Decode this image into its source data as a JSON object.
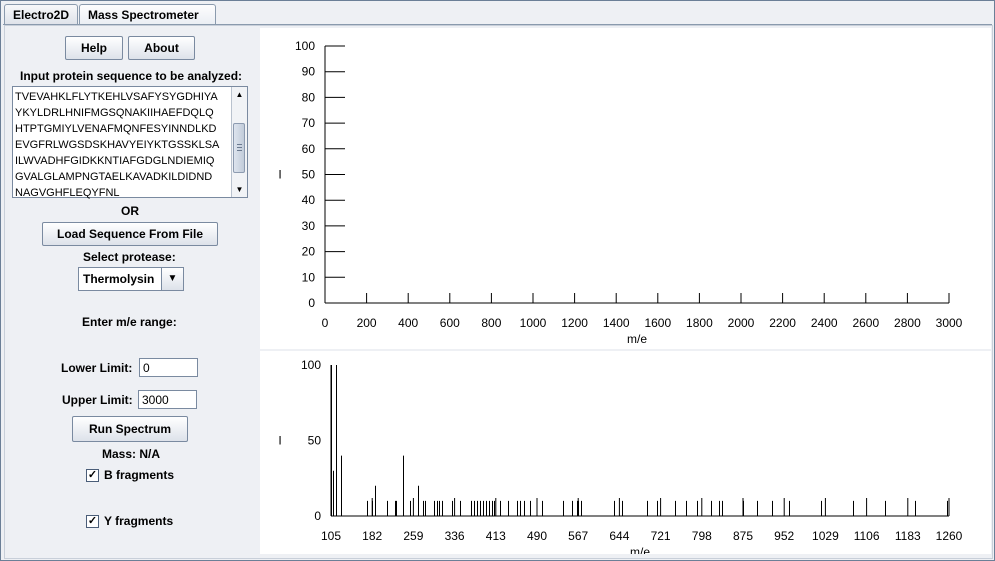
{
  "tabs": [
    {
      "label": "Electro2D",
      "active": false
    },
    {
      "label": "Mass Spectrometer",
      "active": true
    }
  ],
  "buttons": {
    "help": "Help",
    "about": "About",
    "load_sequence": "Load Sequence From File",
    "run_spectrum": "Run Spectrum"
  },
  "labels": {
    "input_prompt": "Input protein sequence to be analyzed:",
    "or": "OR",
    "select_protease": "Select protease:",
    "enter_range": "Enter m/e range:",
    "lower_limit": "Lower Limit:",
    "upper_limit": "Upper Limit:",
    "mass": "Mass: N/A"
  },
  "sequence_lines": [
    "TVEVAHKLFLYTKEHLVSAFYSYGDHIYA",
    "YKYLDRLHNIFMGSQNAKIIHAEFDQLQ",
    "HTPTGMIYLVENAFMQNFESYINNDLKD",
    "EVGFRLWGSDSKHAVYEIYKTGSSKLSA",
    "ILWVADHFGIDKKNTIAFGDGLNDIEMIQ",
    "GVALGLAMPNGTAELKAVADKILDIDND",
    "NAGVGHFLEQYFNL"
  ],
  "protease": {
    "selected": "Thermolysin"
  },
  "inputs": {
    "lower_limit": "0",
    "upper_limit": "3000"
  },
  "checkboxes": {
    "b_fragments": {
      "label": "B fragments",
      "checked": true
    },
    "y_fragments": {
      "label": "Y fragments",
      "checked": true
    }
  },
  "colors": {
    "window_bg": "#eef0f4",
    "plot_bg": "#ffffff",
    "bars": "#000000"
  },
  "chart_data": [
    {
      "type": "bar",
      "title": "",
      "xlabel": "m/e",
      "ylabel": "I",
      "xlim": [
        0,
        3000
      ],
      "ylim": [
        0,
        100
      ],
      "x_ticks": [
        "0",
        "200",
        "400",
        "600",
        "800",
        "1000",
        "1200",
        "1400",
        "1600",
        "1800",
        "2000",
        "2200",
        "2400",
        "2600",
        "2800",
        "3000"
      ],
      "y_ticks": [
        "0",
        "10",
        "20",
        "30",
        "40",
        "50",
        "60",
        "70",
        "80",
        "90",
        "100"
      ],
      "bars": []
    },
    {
      "type": "bar",
      "title": "",
      "xlabel": "m/e",
      "ylabel": "I",
      "xlim": [
        105,
        1260
      ],
      "ylim": [
        0,
        100
      ],
      "x_ticks": [
        "105",
        "182",
        "259",
        "336",
        "413",
        "490",
        "567",
        "644",
        "721",
        "798",
        "875",
        "952",
        "1029",
        "1106",
        "1183",
        "1260"
      ],
      "y_ticks": [
        "0",
        "50",
        "100"
      ],
      "bars": [
        {
          "x": 105,
          "y": 100
        },
        {
          "x": 109,
          "y": 30
        },
        {
          "x": 114,
          "y": 100
        },
        {
          "x": 124,
          "y": 40
        },
        {
          "x": 173,
          "y": 10
        },
        {
          "x": 182,
          "y": 10
        },
        {
          "x": 188,
          "y": 20
        },
        {
          "x": 209,
          "y": 10
        },
        {
          "x": 225,
          "y": 10
        },
        {
          "x": 227,
          "y": 10
        },
        {
          "x": 240,
          "y": 40
        },
        {
          "x": 252,
          "y": 10
        },
        {
          "x": 268,
          "y": 20
        },
        {
          "x": 277,
          "y": 10
        },
        {
          "x": 281,
          "y": 10
        },
        {
          "x": 297,
          "y": 10
        },
        {
          "x": 304,
          "y": 10
        },
        {
          "x": 306,
          "y": 10
        },
        {
          "x": 313,
          "y": 10
        },
        {
          "x": 331,
          "y": 10
        },
        {
          "x": 346,
          "y": 10
        },
        {
          "x": 367,
          "y": 10
        },
        {
          "x": 372,
          "y": 10
        },
        {
          "x": 378,
          "y": 10
        },
        {
          "x": 383,
          "y": 10
        },
        {
          "x": 389,
          "y": 10
        },
        {
          "x": 394,
          "y": 10
        },
        {
          "x": 400,
          "y": 10
        },
        {
          "x": 405,
          "y": 10
        },
        {
          "x": 410,
          "y": 10
        },
        {
          "x": 421,
          "y": 10
        },
        {
          "x": 436,
          "y": 10
        },
        {
          "x": 452,
          "y": 10
        },
        {
          "x": 458,
          "y": 10
        },
        {
          "x": 466,
          "y": 10
        },
        {
          "x": 477,
          "y": 10
        },
        {
          "x": 500,
          "y": 10
        },
        {
          "x": 538,
          "y": 10
        },
        {
          "x": 556,
          "y": 10
        },
        {
          "x": 565,
          "y": 10
        },
        {
          "x": 567,
          "y": 10
        },
        {
          "x": 572,
          "y": 10
        },
        {
          "x": 633,
          "y": 10
        },
        {
          "x": 648,
          "y": 10
        },
        {
          "x": 695,
          "y": 10
        },
        {
          "x": 715,
          "y": 10
        },
        {
          "x": 747,
          "y": 10
        },
        {
          "x": 768,
          "y": 10
        },
        {
          "x": 789,
          "y": 10
        },
        {
          "x": 815,
          "y": 10
        },
        {
          "x": 830,
          "y": 10
        },
        {
          "x": 835,
          "y": 10
        },
        {
          "x": 875,
          "y": 10
        },
        {
          "x": 902,
          "y": 10
        },
        {
          "x": 930,
          "y": 10
        },
        {
          "x": 961,
          "y": 10
        },
        {
          "x": 1020,
          "y": 10
        },
        {
          "x": 1080,
          "y": 10
        },
        {
          "x": 1140,
          "y": 10
        },
        {
          "x": 1197,
          "y": 10
        },
        {
          "x": 1257,
          "y": 10
        }
      ]
    }
  ]
}
